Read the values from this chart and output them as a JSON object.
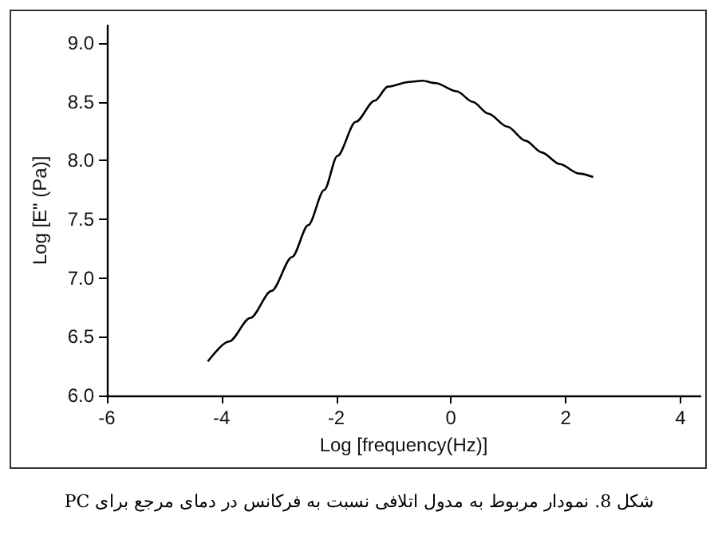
{
  "chart_data": {
    "type": "line",
    "xlabel": "Log [frequency(Hz)]",
    "ylabel": "Log [E\" (Pa)]",
    "x": [
      -4.24,
      -3.87,
      -3.5,
      -3.13,
      -2.77,
      -2.49,
      -2.21,
      -1.98,
      -1.66,
      -1.33,
      -1.1,
      -0.73,
      -0.5,
      -0.27,
      0.1,
      0.38,
      0.65,
      0.98,
      1.3,
      1.58,
      1.9,
      2.23,
      2.48
    ],
    "series": [
      {
        "color": "#000000",
        "values": [
          6.29,
          6.46,
          6.66,
          6.89,
          7.18,
          7.45,
          7.75,
          8.04,
          8.33,
          8.51,
          8.63,
          8.67,
          8.68,
          8.66,
          8.59,
          8.5,
          8.4,
          8.29,
          8.17,
          8.07,
          7.97,
          7.89,
          7.86
        ]
      }
    ],
    "xlim": [
      -6,
      4.35
    ],
    "xticks": [
      -6,
      -4,
      -2,
      0,
      2,
      4
    ],
    "ylim": [
      6,
      9.15
    ],
    "yticks": [
      {
        "value": 6,
        "label": "6.0"
      },
      {
        "value": 6.5,
        "label": "6.5"
      },
      {
        "value": 7,
        "label": "7.0"
      },
      {
        "value": 7.5,
        "label": "7.5"
      },
      {
        "value": 8,
        "label": "8.0"
      },
      {
        "value": 8.5,
        "label": "8.5"
      },
      {
        "value": 9,
        "label": "9.0"
      }
    ],
    "marker": "none",
    "line_style": "solid",
    "annotations": [
      "شکل 8. نمودار مربوط به مدول اتلافی نسبت به فرکانس در دمای مرجع برای PC"
    ]
  }
}
